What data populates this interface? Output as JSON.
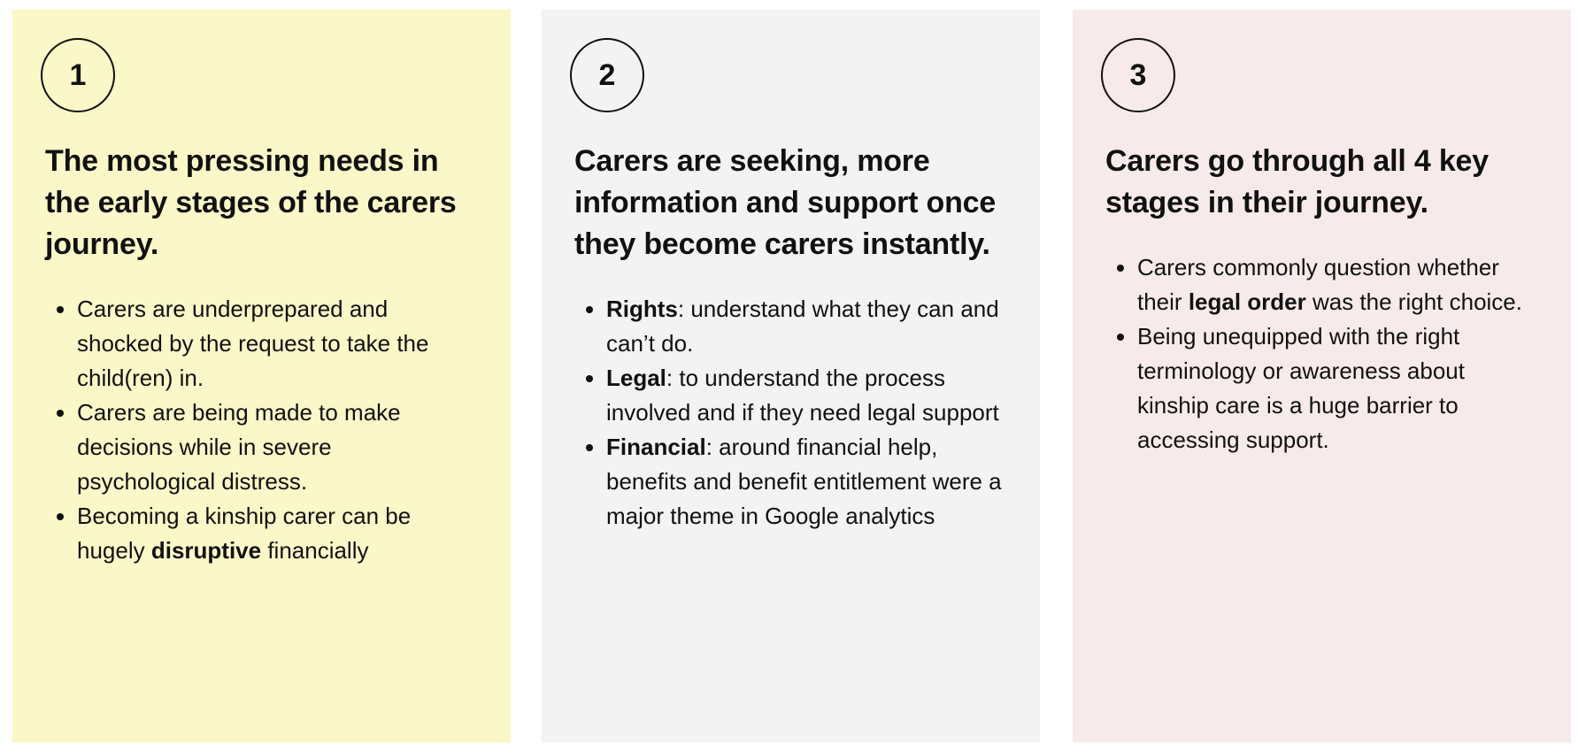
{
  "cards": [
    {
      "number": "1",
      "heading": "The most pressing needs in the early stages of the carers journey.",
      "bullets": [
        [
          {
            "text": "Carers are underprepared and shocked by the request to take the child(ren) in."
          }
        ],
        [
          {
            "text": "Carers are being made to make decisions while in severe psychological distress."
          }
        ],
        [
          {
            "text": "Becoming a kinship carer can be hugely "
          },
          {
            "text": "disruptive",
            "bold": true
          },
          {
            "text": " financially"
          }
        ]
      ]
    },
    {
      "number": "2",
      "heading": "Carers are seeking, more information and support once they become carers instantly.",
      "bullets": [
        [
          {
            "text": "Rights",
            "bold": true
          },
          {
            "text": ": understand what they can and can’t do."
          }
        ],
        [
          {
            "text": "Legal",
            "bold": true
          },
          {
            "text": ": to understand the process involved and if they need legal support"
          }
        ],
        [
          {
            "text": "Financial",
            "bold": true
          },
          {
            "text": ": around financial help, benefits and benefit entitlement were a major theme in Google analytics"
          }
        ]
      ]
    },
    {
      "number": "3",
      "heading": "Carers go through all 4 key stages in their journey.",
      "bullets": [
        [
          {
            "text": "Carers commonly question whether their "
          },
          {
            "text": "legal order",
            "bold": true
          },
          {
            "text": " was the right choice."
          }
        ],
        [
          {
            "text": "Being unequipped with the right terminology or awareness about kinship care is a huge barrier to accessing support."
          }
        ]
      ]
    }
  ]
}
